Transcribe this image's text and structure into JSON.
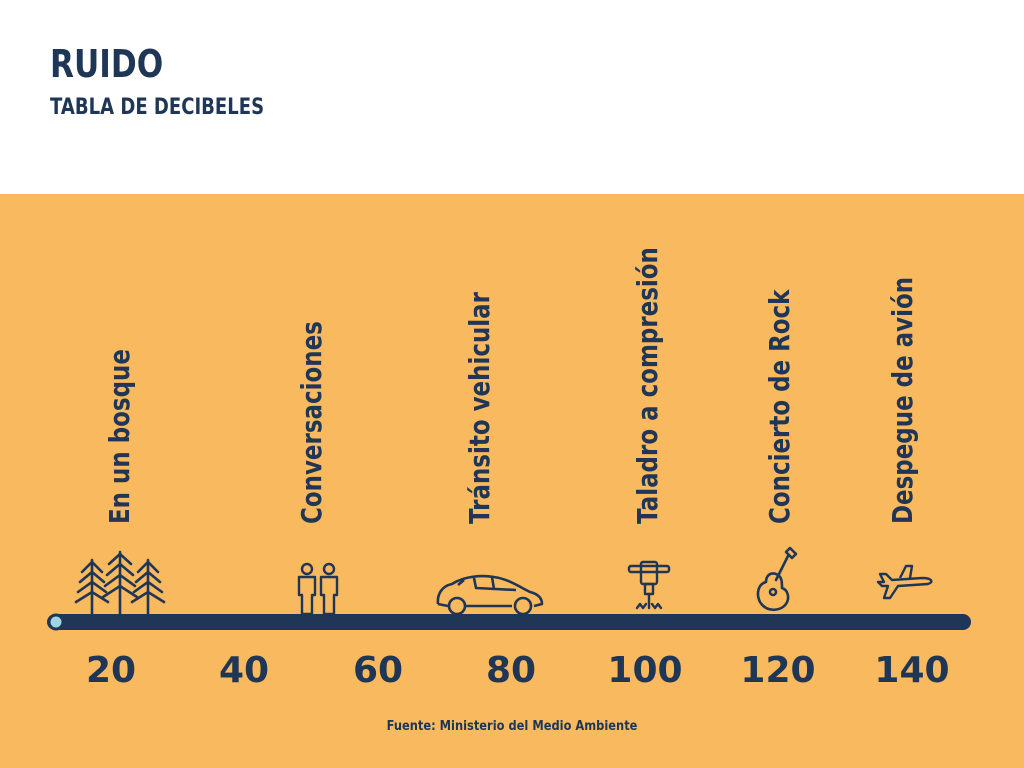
{
  "header": {
    "title": "RUIDO",
    "subtitle": "TABLA DE DECIBELES"
  },
  "scale": {
    "unit_ticks": [
      "20",
      "40",
      "60",
      "80",
      "100",
      "120",
      "140"
    ],
    "gradient_colors": [
      "#9fd3e6",
      "#1f4d8c",
      "#e2384a"
    ]
  },
  "sources": [
    {
      "label": "En un bosque",
      "icon": "trees-icon"
    },
    {
      "label": "Conversaciones",
      "icon": "people-icon"
    },
    {
      "label": "Tránsito vehicular",
      "icon": "car-icon"
    },
    {
      "label": "Taladro a compresión",
      "icon": "jackhammer-icon"
    },
    {
      "label": "Concierto de Rock",
      "icon": "guitar-icon"
    },
    {
      "label": "Despegue de avión",
      "icon": "airplane-icon"
    }
  ],
  "footer": {
    "source": "Fuente: Ministerio del Medio Ambiente"
  },
  "colors": {
    "background_panel": "#f8b95f",
    "text": "#1f3656"
  }
}
